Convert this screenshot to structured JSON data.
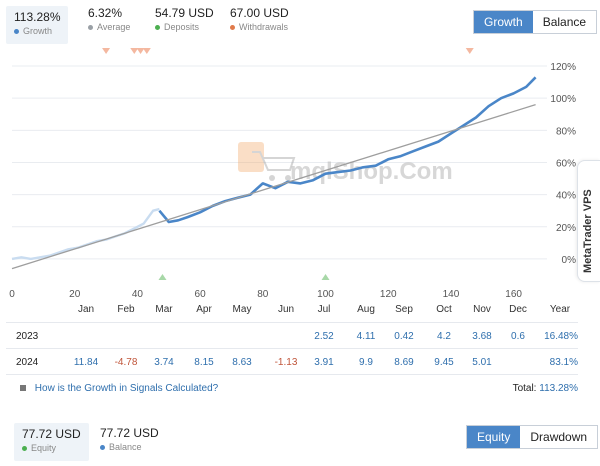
{
  "stats": [
    {
      "value": "113.28%",
      "label": "Growth",
      "color": "#4a86c8"
    },
    {
      "value": "6.32%",
      "label": "Average",
      "color": "#9aa0a6"
    },
    {
      "value": "54.79 USD",
      "label": "Deposits",
      "color": "#4caf50"
    },
    {
      "value": "67.00 USD",
      "label": "Withdrawals",
      "color": "#e07a4a"
    }
  ],
  "top_toggle": {
    "growth": "Growth",
    "balance": "Balance"
  },
  "watermark": "mqlShop.Com",
  "side_tab": "MetaTrader VPS",
  "chart_data": {
    "type": "line",
    "x_ticks": [
      0,
      20,
      40,
      60,
      80,
      100,
      120,
      140,
      160
    ],
    "y_ticks": [
      "120%",
      "100%",
      "80%",
      "60%",
      "40%",
      "20%",
      "0%"
    ],
    "xlim": [
      0,
      170
    ],
    "ylim": [
      -10,
      125
    ],
    "month_labels": [
      "Jan",
      "Feb",
      "Mar",
      "Apr",
      "May",
      "Jun",
      "Jul",
      "Aug",
      "Sep",
      "Oct",
      "Nov",
      "Dec",
      "Year"
    ],
    "series": [
      {
        "role": "growth-early",
        "color": "#c9dcf0",
        "x": [
          0,
          3,
          6,
          9,
          12,
          15,
          18,
          21,
          24,
          27,
          30,
          33,
          36,
          39,
          42,
          45,
          47
        ],
        "y": [
          0,
          1,
          0,
          1,
          2,
          4,
          6,
          7,
          9,
          11,
          12,
          14,
          16,
          19,
          22,
          30,
          31
        ]
      },
      {
        "role": "growth",
        "color": "#4a86c8",
        "x": [
          47,
          50,
          53,
          56,
          60,
          64,
          68,
          72,
          76,
          80,
          84,
          88,
          92,
          96,
          100,
          104,
          108,
          112,
          116,
          120,
          124,
          128,
          132,
          136,
          140,
          144,
          148,
          152,
          156,
          160,
          164,
          167
        ],
        "y": [
          30,
          23,
          24,
          26,
          29,
          33,
          36,
          38,
          40,
          47,
          44,
          48,
          47,
          49,
          53,
          54,
          55,
          57,
          58,
          62,
          64,
          67,
          70,
          73,
          78,
          83,
          88,
          95,
          100,
          103,
          107,
          113
        ]
      },
      {
        "role": "trend",
        "color": "#9e9e9e",
        "x": [
          0,
          167
        ],
        "y": [
          -6,
          96
        ]
      }
    ],
    "markers_top": [
      30,
      39,
      41,
      43,
      146
    ],
    "markers_bottom": [
      48,
      100
    ]
  },
  "table": {
    "months": [
      "Jan",
      "Feb",
      "Mar",
      "Apr",
      "May",
      "Jun",
      "Jul",
      "Aug",
      "Sep",
      "Oct",
      "Nov",
      "Dec",
      "Year"
    ],
    "rows": [
      {
        "year": "2023",
        "cells": [
          "",
          "",
          "",
          "",
          "",
          "",
          "2.52",
          "4.11",
          "0.42",
          "4.2",
          "3.68",
          "0.6",
          "16.48%"
        ]
      },
      {
        "year": "2024",
        "cells": [
          "11.84",
          "-4.78",
          "3.74",
          "8.15",
          "8.63",
          "-1.13",
          "3.91",
          "9.9",
          "8.69",
          "9.45",
          "5.01",
          "",
          "83.1%"
        ]
      }
    ],
    "help_link": "How is the Growth in Signals Calculated?",
    "total_label": "Total:",
    "total_value": "113.28%"
  },
  "bottom": {
    "equity": {
      "value": "77.72 USD",
      "label": "Equity",
      "color": "#4caf50"
    },
    "balance": {
      "value": "77.72 USD",
      "label": "Balance",
      "color": "#4a86c8"
    },
    "toggle": {
      "equity": "Equity",
      "drawdown": "Drawdown"
    }
  }
}
